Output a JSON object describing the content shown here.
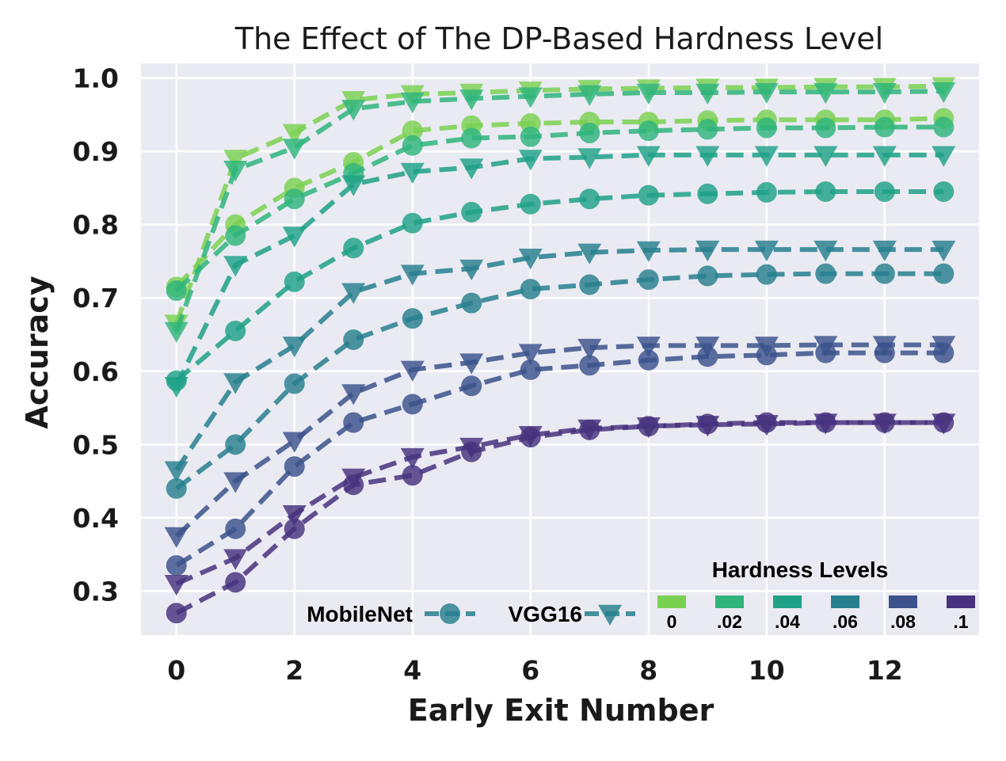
{
  "chart_data": {
    "type": "line",
    "title": "The Effect of The DP-Based Hardness Level",
    "xlabel": "Early Exit Number",
    "ylabel": "Accuracy",
    "xlim": [
      -0.6,
      13.6
    ],
    "ylim": [
      0.24,
      1.02
    ],
    "x_ticks": [
      0,
      2,
      4,
      6,
      8,
      10,
      12
    ],
    "y_ticks": [
      0.3,
      0.4,
      0.5,
      0.6,
      0.7,
      0.8,
      0.9,
      1.0
    ],
    "x_tick_labels": [
      "0",
      "2",
      "4",
      "6",
      "8",
      "10",
      "12"
    ],
    "y_tick_labels": [
      "0.3",
      "0.4",
      "0.5",
      "0.6",
      "0.7",
      "0.8",
      "0.9",
      "1.0"
    ],
    "x": [
      0,
      1,
      2,
      3,
      4,
      5,
      6,
      7,
      8,
      9,
      10,
      11,
      12,
      13
    ],
    "grid": true,
    "legend": {
      "title": "Hardness Levels",
      "model_entries": [
        {
          "label": "MobileNet",
          "marker": "circle"
        },
        {
          "label": "VGG16",
          "marker": "triangle-down"
        }
      ],
      "level_labels": [
        "0",
        ".02",
        ".04",
        ".06",
        ".08",
        ".1"
      ],
      "level_colors": [
        "#7ad151",
        "#2fb47c",
        "#1fa187",
        "#277f8e",
        "#3b528b",
        "#46327e"
      ],
      "placement": "bottom-right"
    },
    "series": [
      {
        "model": "MobileNet",
        "level": "0",
        "color": "#7ad151",
        "marker": "circle",
        "values": [
          0.715,
          0.8,
          0.85,
          0.885,
          0.928,
          0.935,
          0.938,
          0.94,
          0.94,
          0.942,
          0.943,
          0.943,
          0.943,
          0.945
        ]
      },
      {
        "model": "VGG16",
        "level": "0",
        "color": "#7ad151",
        "marker": "triangle-down",
        "values": [
          0.665,
          0.89,
          0.925,
          0.97,
          0.978,
          0.98,
          0.983,
          0.985,
          0.986,
          0.987,
          0.987,
          0.988,
          0.988,
          0.989
        ]
      },
      {
        "model": "MobileNet",
        "level": ".02",
        "color": "#2fb47c",
        "marker": "circle",
        "values": [
          0.71,
          0.785,
          0.835,
          0.87,
          0.908,
          0.918,
          0.92,
          0.925,
          0.928,
          0.93,
          0.932,
          0.932,
          0.933,
          0.933
        ]
      },
      {
        "model": "VGG16",
        "level": ".02",
        "color": "#2fb47c",
        "marker": "triangle-down",
        "values": [
          0.655,
          0.875,
          0.905,
          0.958,
          0.968,
          0.972,
          0.975,
          0.978,
          0.98,
          0.98,
          0.981,
          0.981,
          0.981,
          0.982
        ]
      },
      {
        "model": "MobileNet",
        "level": ".04",
        "color": "#1fa187",
        "marker": "circle",
        "values": [
          0.587,
          0.655,
          0.722,
          0.768,
          0.802,
          0.817,
          0.828,
          0.835,
          0.84,
          0.842,
          0.844,
          0.845,
          0.845,
          0.845
        ]
      },
      {
        "model": "VGG16",
        "level": ".04",
        "color": "#1fa187",
        "marker": "triangle-down",
        "values": [
          0.58,
          0.745,
          0.785,
          0.855,
          0.872,
          0.878,
          0.89,
          0.892,
          0.895,
          0.895,
          0.895,
          0.895,
          0.895,
          0.895
        ]
      },
      {
        "model": "MobileNet",
        "level": ".06",
        "color": "#277f8e",
        "marker": "circle",
        "values": [
          0.44,
          0.5,
          0.583,
          0.643,
          0.672,
          0.693,
          0.712,
          0.718,
          0.725,
          0.73,
          0.732,
          0.733,
          0.733,
          0.733
        ]
      },
      {
        "model": "VGG16",
        "level": ".06",
        "color": "#277f8e",
        "marker": "triangle-down",
        "values": [
          0.465,
          0.585,
          0.635,
          0.708,
          0.733,
          0.74,
          0.755,
          0.762,
          0.765,
          0.766,
          0.766,
          0.766,
          0.766,
          0.766
        ]
      },
      {
        "model": "MobileNet",
        "level": ".08",
        "color": "#3b528b",
        "marker": "circle",
        "values": [
          0.335,
          0.385,
          0.47,
          0.53,
          0.555,
          0.58,
          0.602,
          0.608,
          0.615,
          0.62,
          0.622,
          0.625,
          0.625,
          0.625
        ]
      },
      {
        "model": "VGG16",
        "level": ".08",
        "color": "#3b528b",
        "marker": "triangle-down",
        "values": [
          0.375,
          0.45,
          0.505,
          0.57,
          0.602,
          0.612,
          0.625,
          0.632,
          0.635,
          0.635,
          0.635,
          0.636,
          0.636,
          0.636
        ]
      },
      {
        "model": "MobileNet",
        "level": ".1",
        "color": "#46327e",
        "marker": "circle",
        "values": [
          0.27,
          0.312,
          0.385,
          0.445,
          0.458,
          0.49,
          0.51,
          0.52,
          0.525,
          0.528,
          0.53,
          0.53,
          0.53,
          0.53
        ]
      },
      {
        "model": "VGG16",
        "level": ".1",
        "color": "#46327e",
        "marker": "triangle-down",
        "values": [
          0.31,
          0.345,
          0.405,
          0.455,
          0.483,
          0.497,
          0.513,
          0.522,
          0.525,
          0.527,
          0.528,
          0.53,
          0.53,
          0.53
        ]
      }
    ]
  }
}
